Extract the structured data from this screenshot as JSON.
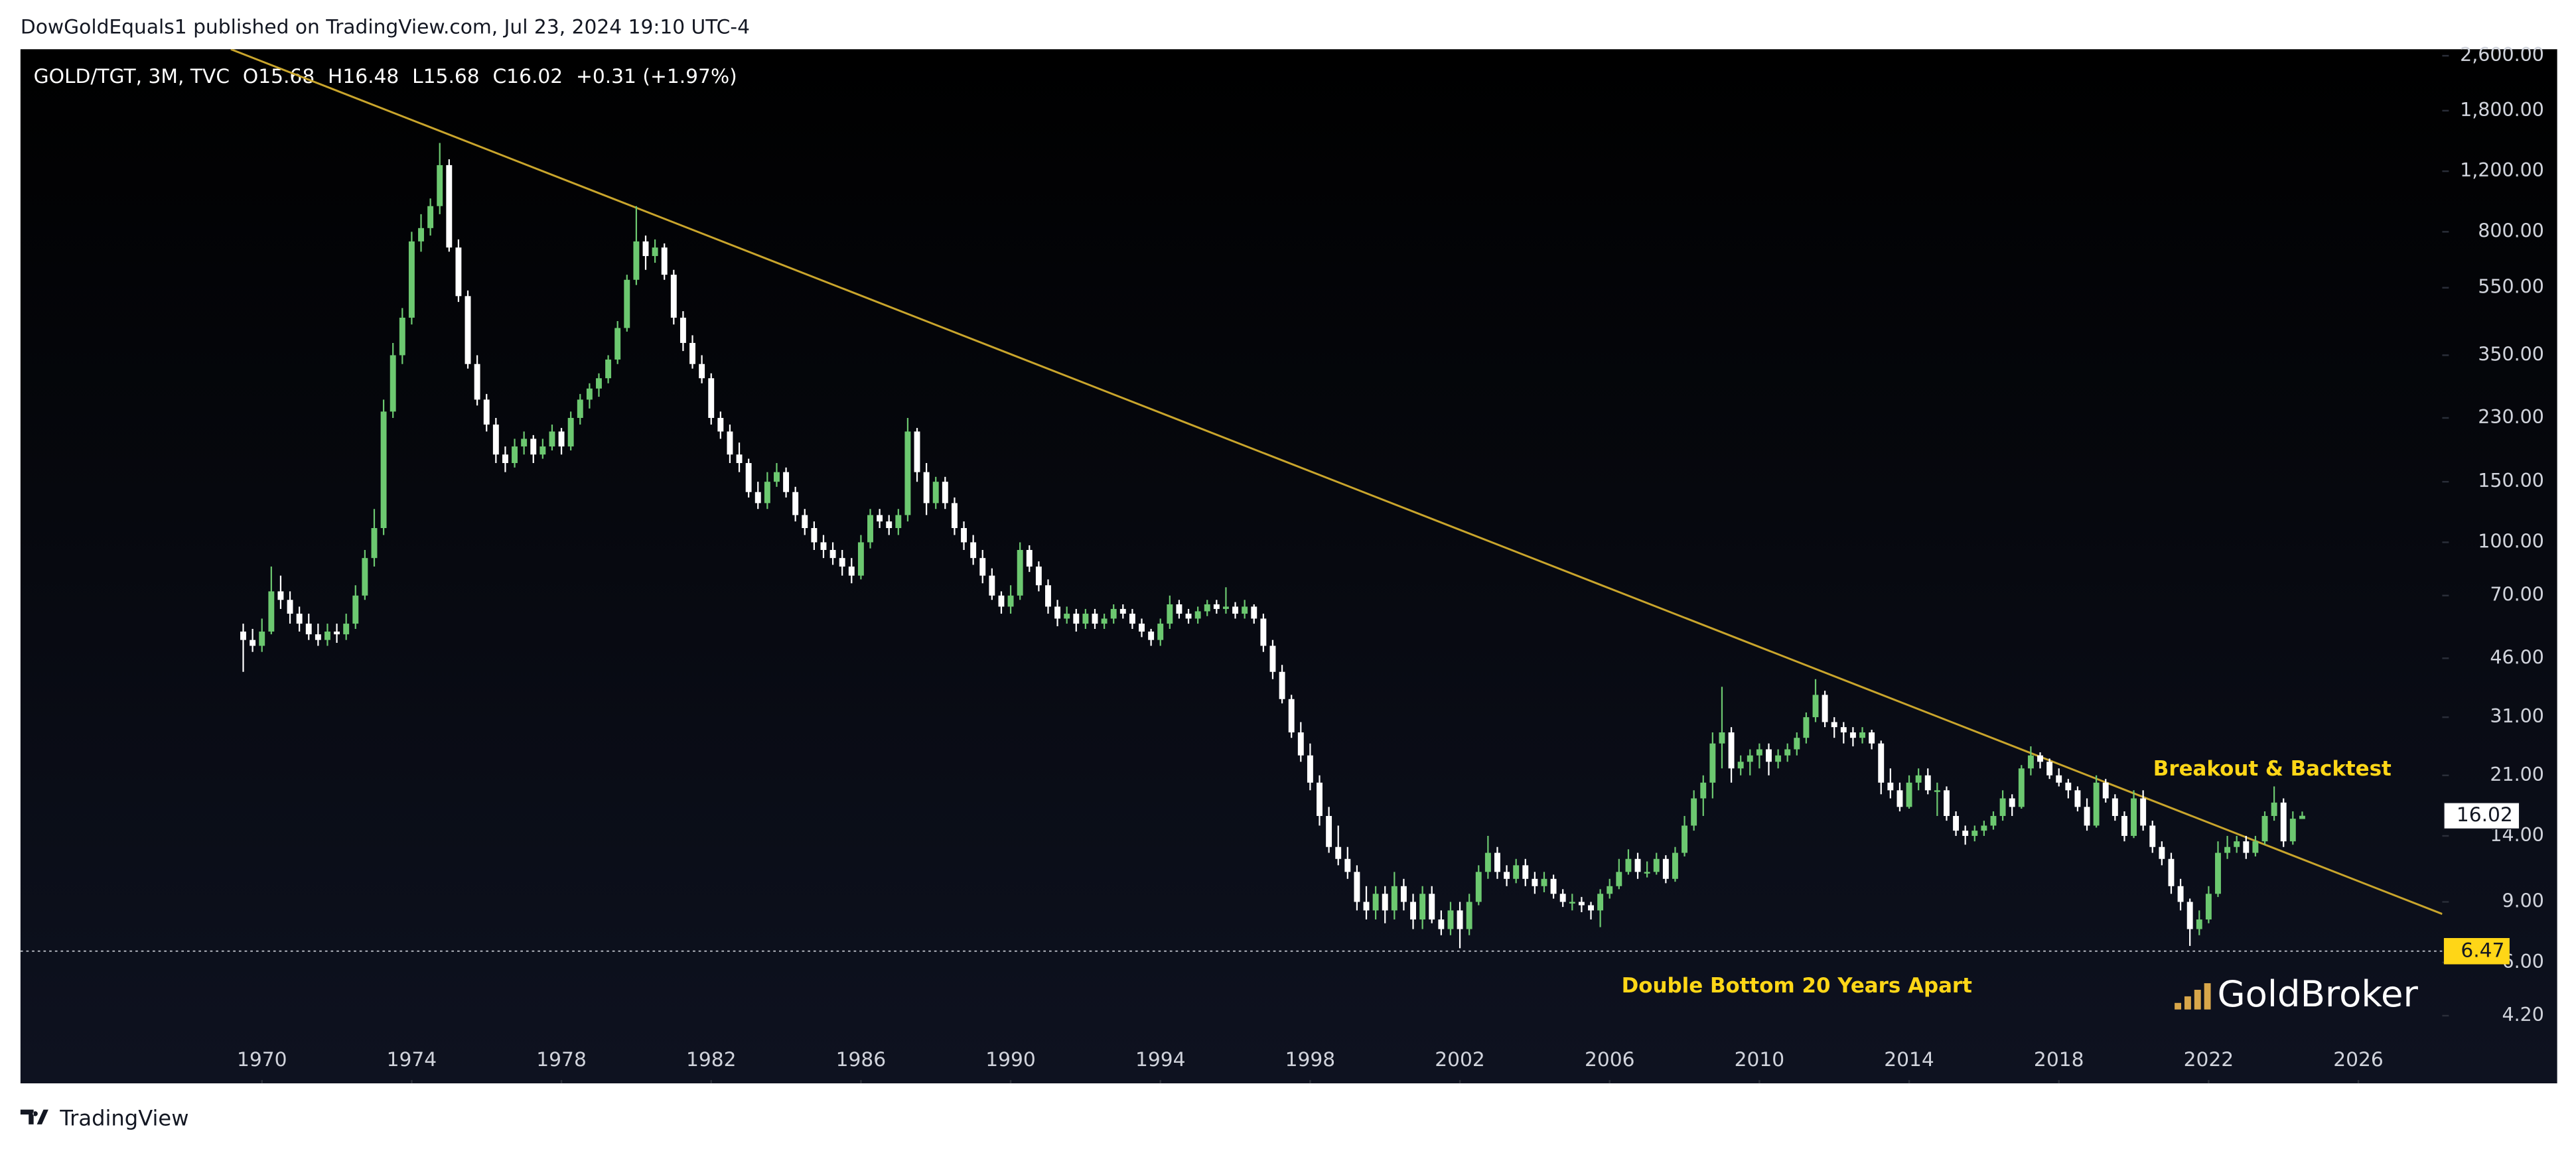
{
  "chart_data": {
    "type": "candlestick",
    "header": "DowGoldEquals1 published on TradingView.com, Jul 23, 2024 19:10 UTC-4",
    "legend_symbol": "GOLD/TGT, 3M, TVC",
    "legend_values": [
      "O15.68",
      "H16.48",
      "L15.68",
      "C16.02",
      "+0.31 (+1.97%)"
    ],
    "footer": "TradingView",
    "brand": "GoldBroker",
    "log_scale": true,
    "up_color": "#6cc870",
    "down_color": "#ffffff",
    "trendline_color": "#c9a52c",
    "annotation_color": "#ffd617",
    "annotations": [
      {
        "text": "Breakout & Backtest",
        "x": 2023.7,
        "y": 21.8
      },
      {
        "text": "Double Bottom 20 Years Apart",
        "x": 2011.0,
        "y": 5.1
      }
    ],
    "trendline": {
      "x": [
        1969.17,
        2028.24
      ],
      "y": [
        2716,
        8.3
      ]
    },
    "support_level": {
      "value": 6.47,
      "label": "6.47"
    },
    "last_price": {
      "value": 16.02,
      "label": "16.02"
    },
    "xlim": [
      1963.55,
      2028.24
    ],
    "xticks": [
      1970,
      1974,
      1978,
      1982,
      1986,
      1990,
      1994,
      1998,
      2002,
      2006,
      2010,
      2014,
      2018,
      2022,
      2026
    ],
    "ylim": [
      2.67,
      2716
    ],
    "yticks": [
      {
        "value": 2600,
        "label": "2,600.00"
      },
      {
        "value": 1800,
        "label": "1,800.00"
      },
      {
        "value": 1200,
        "label": "1,200.00"
      },
      {
        "value": 800,
        "label": "800.00"
      },
      {
        "value": 550,
        "label": "550.00"
      },
      {
        "value": 350,
        "label": "350.00"
      },
      {
        "value": 230,
        "label": "230.00"
      },
      {
        "value": 150,
        "label": "150.00"
      },
      {
        "value": 100,
        "label": "100.00"
      },
      {
        "value": 70,
        "label": "70.00"
      },
      {
        "value": 46,
        "label": "46.00"
      },
      {
        "value": 31,
        "label": "31.00"
      },
      {
        "value": 21,
        "label": "21.00"
      },
      {
        "value": 14,
        "label": "14.00"
      },
      {
        "value": 9,
        "label": "9.00"
      },
      {
        "value": 6,
        "label": "6.00"
      },
      {
        "value": 4.2,
        "label": "4.20"
      }
    ],
    "x": [
      1969.5,
      1969.75,
      1970,
      1970.25,
      1970.5,
      1970.75,
      1971,
      1971.25,
      1971.5,
      1971.75,
      1972,
      1972.25,
      1972.5,
      1972.75,
      1973,
      1973.25,
      1973.5,
      1973.75,
      1974,
      1974.25,
      1974.5,
      1974.75,
      1975,
      1975.25,
      1975.5,
      1975.75,
      1976,
      1976.25,
      1976.5,
      1976.75,
      1977,
      1977.25,
      1977.5,
      1977.75,
      1978,
      1978.25,
      1978.5,
      1978.75,
      1979,
      1979.25,
      1979.5,
      1979.75,
      1980,
      1980.25,
      1980.5,
      1980.75,
      1981,
      1981.25,
      1981.5,
      1981.75,
      1982,
      1982.25,
      1982.5,
      1982.75,
      1983,
      1983.25,
      1983.5,
      1983.75,
      1984,
      1984.25,
      1984.5,
      1984.75,
      1985,
      1985.25,
      1985.5,
      1985.75,
      1986,
      1986.25,
      1986.5,
      1986.75,
      1987,
      1987.25,
      1987.5,
      1987.75,
      1988,
      1988.25,
      1988.5,
      1988.75,
      1989,
      1989.25,
      1989.5,
      1989.75,
      1990,
      1990.25,
      1990.5,
      1990.75,
      1991,
      1991.25,
      1991.5,
      1991.75,
      1992,
      1992.25,
      1992.5,
      1992.75,
      1993,
      1993.25,
      1993.5,
      1993.75,
      1994,
      1994.25,
      1994.5,
      1994.75,
      1995,
      1995.25,
      1995.5,
      1995.75,
      1996,
      1996.25,
      1996.5,
      1996.75,
      1997,
      1997.25,
      1997.5,
      1997.75,
      1998,
      1998.25,
      1998.5,
      1998.75,
      1999,
      1999.25,
      1999.5,
      1999.75,
      2000,
      2000.25,
      2000.5,
      2000.75,
      2001,
      2001.25,
      2001.5,
      2001.75,
      2002,
      2002.25,
      2002.5,
      2002.75,
      2003,
      2003.25,
      2003.5,
      2003.75,
      2004,
      2004.25,
      2004.5,
      2004.75,
      2005,
      2005.25,
      2005.5,
      2005.75,
      2006,
      2006.25,
      2006.5,
      2006.75,
      2007,
      2007.25,
      2007.5,
      2007.75,
      2008,
      2008.25,
      2008.5,
      2008.75,
      2009,
      2009.25,
      2009.5,
      2009.75,
      2010,
      2010.25,
      2010.5,
      2010.75,
      2011,
      2011.25,
      2011.5,
      2011.75,
      2012,
      2012.25,
      2012.5,
      2012.75,
      2013,
      2013.25,
      2013.5,
      2013.75,
      2014,
      2014.25,
      2014.5,
      2014.75,
      2015,
      2015.25,
      2015.5,
      2015.75,
      2016,
      2016.25,
      2016.5,
      2016.75,
      2017,
      2017.25,
      2017.5,
      2017.75,
      2018,
      2018.25,
      2018.5,
      2018.75,
      2019,
      2019.25,
      2019.5,
      2019.75,
      2020,
      2020.25,
      2020.5,
      2020.75,
      2021,
      2021.25,
      2021.5,
      2021.75,
      2022,
      2022.25,
      2022.5,
      2022.75,
      2023,
      2023.25,
      2023.5,
      2023.75,
      2024,
      2024.25,
      2024.5
    ],
    "open": [
      55,
      52,
      50,
      55,
      72,
      68,
      62,
      58,
      54,
      52,
      55,
      54,
      58,
      70,
      90,
      110,
      240,
      350,
      450,
      750,
      820,
      950,
      1250,
      720,
      520,
      330,
      260,
      220,
      180,
      170,
      190,
      200,
      180,
      190,
      210,
      190,
      230,
      260,
      280,
      300,
      340,
      420,
      580,
      750,
      680,
      720,
      600,
      450,
      380,
      330,
      300,
      230,
      210,
      180,
      170,
      140,
      130,
      150,
      160,
      140,
      120,
      110,
      100,
      95,
      90,
      85,
      80,
      100,
      120,
      115,
      110,
      120,
      210,
      160,
      130,
      150,
      130,
      110,
      100,
      90,
      80,
      70,
      65,
      70,
      95,
      85,
      75,
      65,
      60,
      62,
      58,
      62,
      58,
      60,
      64,
      62,
      58,
      55,
      52,
      58,
      66,
      62,
      60,
      63,
      66,
      64,
      65,
      62,
      65,
      60,
      50,
      42,
      35,
      28,
      24,
      20,
      16,
      13,
      12,
      11,
      9,
      8.5,
      9.5,
      8.5,
      10,
      9,
      8,
      9.5,
      8,
      7.5,
      8.5,
      7.5,
      9,
      11,
      12.5,
      11,
      10.5,
      11.5,
      10.5,
      10,
      10.5,
      9.5,
      9,
      9,
      8.8,
      8.5,
      9.5,
      10,
      11,
      12,
      11,
      11,
      12,
      10.5,
      12.5,
      15,
      18,
      20,
      26,
      28,
      22,
      23,
      24,
      25,
      23,
      24,
      25,
      27,
      31,
      36,
      30,
      29,
      28,
      27,
      28,
      26,
      20,
      19,
      17,
      20,
      21,
      19,
      19,
      16,
      14.5,
      14,
      14.5,
      15,
      16,
      18,
      17,
      22,
      24,
      23,
      21,
      20,
      19,
      17,
      15,
      20,
      18,
      16,
      14,
      18,
      15,
      13,
      12,
      10,
      9,
      7.5,
      8,
      9.5,
      12.5,
      13,
      13.5,
      12.5,
      13.5,
      16,
      17.5,
      13.5,
      15.68
    ],
    "high": [
      58,
      56,
      60,
      85,
      80,
      72,
      65,
      62,
      58,
      58,
      58,
      62,
      75,
      95,
      125,
      260,
      380,
      480,
      800,
      900,
      1000,
      1450,
      1300,
      760,
      540,
      350,
      270,
      230,
      190,
      200,
      210,
      205,
      200,
      220,
      215,
      240,
      270,
      290,
      310,
      350,
      440,
      600,
      950,
      780,
      760,
      740,
      620,
      470,
      400,
      350,
      310,
      240,
      220,
      195,
      175,
      150,
      160,
      170,
      165,
      145,
      125,
      115,
      105,
      100,
      95,
      90,
      105,
      125,
      125,
      120,
      125,
      230,
      215,
      170,
      155,
      155,
      135,
      115,
      105,
      95,
      84,
      72,
      75,
      100,
      98,
      88,
      78,
      68,
      65,
      64,
      64,
      64,
      62,
      66,
      66,
      64,
      60,
      56,
      60,
      70,
      68,
      64,
      65,
      68,
      68,
      74,
      67,
      68,
      66,
      62,
      52,
      44,
      36,
      30,
      26,
      21,
      17,
      15,
      13,
      11.5,
      10,
      10,
      10,
      11,
      10.5,
      9.5,
      10,
      10,
      8.5,
      9,
      9,
      9.5,
      11.5,
      14,
      13,
      11.5,
      12,
      12,
      11,
      11,
      10.8,
      9.8,
      9.5,
      9.3,
      9,
      9.8,
      10.5,
      12,
      12.8,
      12.5,
      11.8,
      12.5,
      12.3,
      13,
      16,
      19,
      21,
      28,
      38,
      29,
      24,
      25,
      26,
      26,
      25,
      26,
      28,
      32,
      40,
      37,
      31,
      30,
      29,
      29,
      28.5,
      26.5,
      22,
      20,
      21,
      22,
      22,
      20,
      19.5,
      16.5,
      15,
      15,
      15.5,
      16.5,
      19,
      18.5,
      22.5,
      25.5,
      24.5,
      23.5,
      22,
      20.5,
      19.5,
      18,
      21,
      20.5,
      18.5,
      16.5,
      19,
      19,
      15.5,
      13.5,
      12.5,
      10.5,
      9.2,
      8.5,
      10,
      13.5,
      14,
      14,
      14,
      14,
      16.5,
      19.5,
      18,
      16.5,
      16.48
    ],
    "low": [
      42,
      48,
      48,
      54,
      64,
      58,
      55,
      52,
      50,
      50,
      51,
      52,
      56,
      68,
      85,
      105,
      230,
      330,
      430,
      700,
      780,
      900,
      700,
      500,
      320,
      250,
      210,
      170,
      160,
      165,
      180,
      170,
      175,
      185,
      180,
      185,
      220,
      245,
      265,
      290,
      330,
      410,
      560,
      620,
      650,
      580,
      430,
      360,
      320,
      290,
      220,
      200,
      170,
      160,
      135,
      125,
      125,
      145,
      135,
      115,
      105,
      95,
      90,
      86,
      80,
      76,
      78,
      96,
      110,
      105,
      105,
      115,
      150,
      120,
      125,
      125,
      105,
      95,
      86,
      76,
      68,
      62,
      62,
      68,
      82,
      72,
      62,
      57,
      58,
      55,
      56,
      56,
      56,
      58,
      60,
      56,
      53,
      50,
      50,
      56,
      60,
      58,
      58,
      61,
      62,
      62,
      60,
      60,
      58,
      48,
      40,
      34,
      27,
      23,
      19,
      15,
      12.5,
      11.5,
      10.5,
      8.5,
      8,
      8,
      7.8,
      8,
      8.5,
      7.5,
      7.5,
      7.8,
      7.2,
      7.2,
      6.6,
      7.2,
      8.8,
      10.5,
      10.5,
      10,
      10.2,
      10,
      9.5,
      9.6,
      9.2,
      8.7,
      8.5,
      8.4,
      8,
      7.6,
      9.2,
      9.8,
      10.8,
      10.5,
      10.6,
      10.8,
      10.2,
      10.3,
      12.2,
      14.5,
      16,
      18,
      22,
      20,
      21,
      21,
      22,
      21,
      22,
      23,
      24,
      26,
      30,
      29,
      27,
      26,
      25.5,
      26,
      25,
      18.5,
      18,
      16.5,
      16.8,
      19,
      18.5,
      16,
      15.5,
      14,
      13.2,
      13.5,
      14,
      14.6,
      15.5,
      16,
      16.8,
      21,
      22,
      20.5,
      19.5,
      18,
      16.5,
      14.5,
      14.8,
      17.5,
      15.5,
      13.5,
      13.8,
      14.5,
      12.5,
      11.5,
      9.5,
      8.5,
      6.7,
      7.2,
      7.8,
      9.3,
      12,
      12.5,
      12,
      12.2,
      13.2,
      15.5,
      13,
      13.2,
      15.68
    ],
    "close": [
      52,
      50,
      55,
      72,
      68,
      62,
      58,
      54,
      52,
      55,
      54,
      58,
      70,
      90,
      110,
      240,
      350,
      450,
      750,
      820,
      950,
      1250,
      720,
      520,
      330,
      260,
      220,
      180,
      170,
      190,
      200,
      180,
      190,
      210,
      190,
      230,
      260,
      280,
      300,
      340,
      420,
      580,
      750,
      680,
      720,
      600,
      450,
      380,
      330,
      300,
      230,
      210,
      180,
      170,
      140,
      130,
      150,
      160,
      140,
      120,
      110,
      100,
      95,
      90,
      85,
      80,
      100,
      120,
      115,
      110,
      120,
      210,
      160,
      130,
      150,
      130,
      110,
      100,
      90,
      80,
      70,
      65,
      70,
      95,
      85,
      75,
      65,
      60,
      62,
      58,
      62,
      58,
      60,
      64,
      62,
      58,
      55,
      52,
      58,
      66,
      62,
      60,
      63,
      66,
      64,
      65,
      62,
      65,
      60,
      50,
      42,
      35,
      28,
      24,
      20,
      16,
      13,
      12,
      11,
      9,
      8.5,
      9.5,
      8.5,
      10,
      9,
      8,
      9.5,
      8,
      7.5,
      8.5,
      7.5,
      9,
      11,
      12.5,
      11,
      10.5,
      11.5,
      10.5,
      10,
      10.5,
      9.5,
      9,
      9,
      8.8,
      8.5,
      9.5,
      10,
      11,
      12,
      11,
      11,
      12,
      10.5,
      12.5,
      15,
      18,
      20,
      26,
      28,
      22,
      23,
      24,
      25,
      23,
      24,
      25,
      27,
      31,
      36,
      30,
      29,
      28,
      27,
      28,
      26,
      20,
      19,
      17,
      20,
      21,
      19,
      19,
      16,
      14.5,
      14,
      14.5,
      15,
      16,
      18,
      17,
      22,
      24,
      23,
      21,
      20,
      19,
      17,
      15,
      20,
      18,
      16,
      14,
      18,
      15,
      13,
      12,
      10,
      9,
      7.5,
      8,
      9.5,
      12.5,
      13,
      13.5,
      12.5,
      13.5,
      16,
      17.5,
      13.5,
      15.71,
      16.02
    ]
  }
}
